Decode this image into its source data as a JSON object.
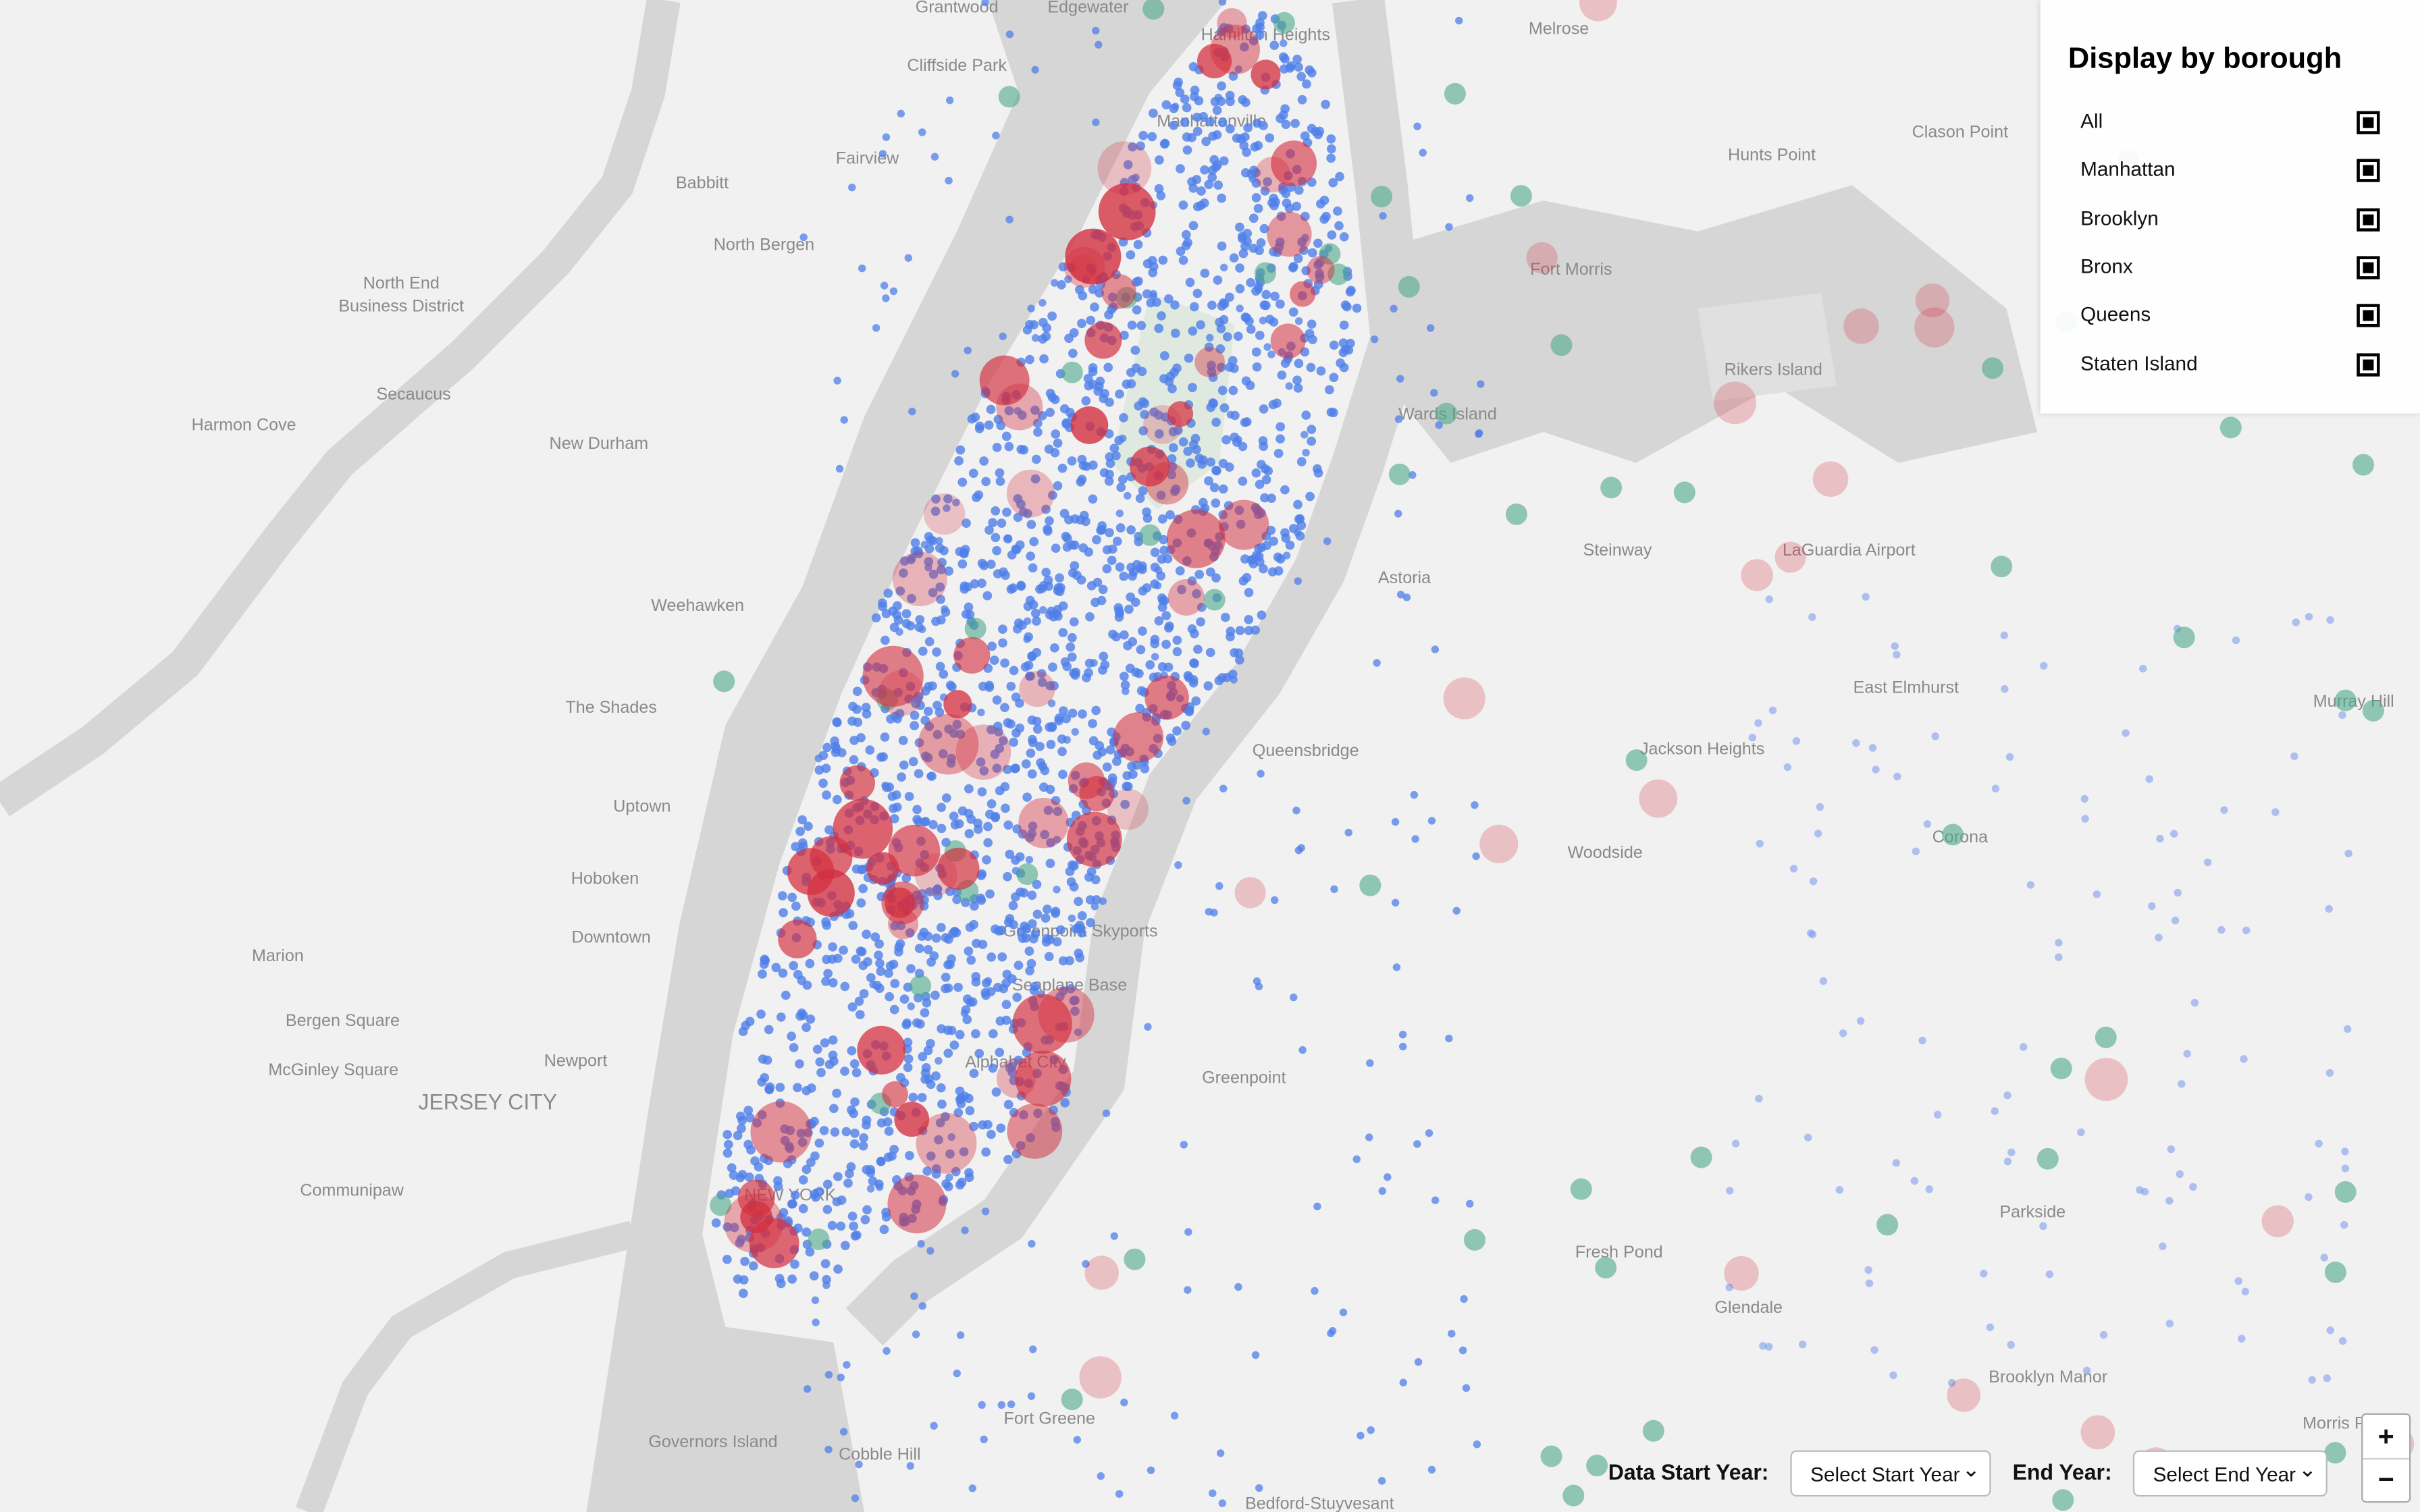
{
  "panel": {
    "title": "Display by borough",
    "options": [
      "All",
      "Manhattan",
      "Brooklyn",
      "Bronx",
      "Queens",
      "Staten Island"
    ]
  },
  "controls": {
    "start_label": "Data Start Year:",
    "start_placeholder": "Select Start Year",
    "end_label": "End Year:",
    "end_placeholder": "Select End Year",
    "zoom_in": "+",
    "zoom_out": "−"
  },
  "map": {
    "labels": [
      "Grantwood",
      "Edgewater",
      "Cliffside Park",
      "Fairview",
      "Babbitt",
      "North Bergen",
      "North End",
      "Business District",
      "Secaucus",
      "Harmon Cove",
      "New Durham",
      "Weehawken",
      "The Shades",
      "Uptown",
      "Hoboken",
      "Downtown",
      "Marion",
      "Bergen Square",
      "Newport",
      "McGinley Square",
      "JERSEY CITY",
      "Communipaw",
      "Greenpoint",
      "LaGuardia Airport",
      "Rikers Island",
      "Wards Island",
      "Astoria",
      "Steinway",
      "Hunts Point",
      "Clason Point",
      "East Elmhurst",
      "Jackson Heights",
      "Corona",
      "Woodside",
      "Queensbridge",
      "Murray Hill",
      "Fresh Pond",
      "Glendale",
      "Parkside",
      "Brooklyn Manor",
      "Morris Park",
      "Governors Island",
      "Cobble Hill",
      "Fort Greene",
      "Bedford-Stuyvesant",
      "Greenpoint Skyports",
      "Seaplane Base",
      "Alphabet City",
      "Melrose",
      "Fort Morris",
      "Manhattanville",
      "Hamilton Heights",
      "NEW YORK"
    ]
  }
}
